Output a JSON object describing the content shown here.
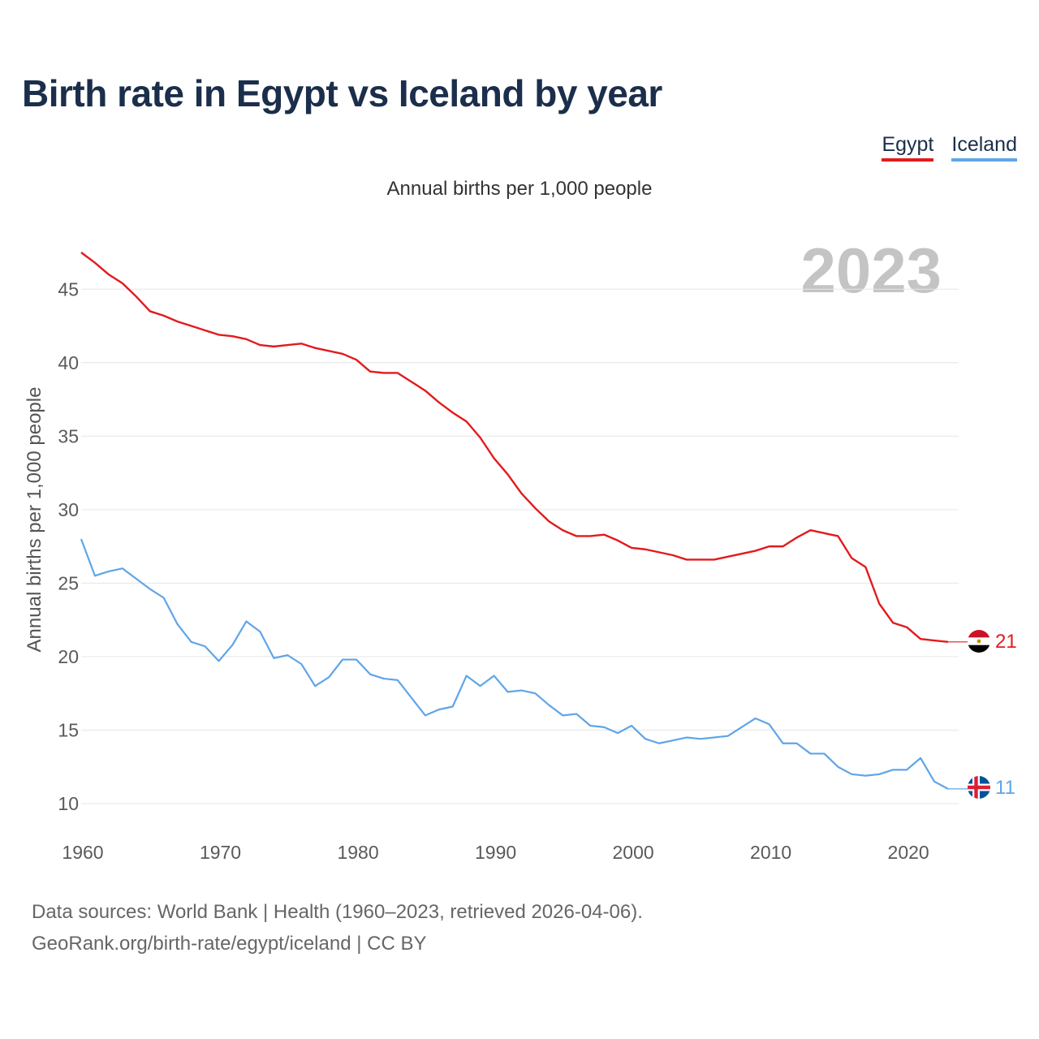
{
  "header": {
    "title": "Birth rate in Egypt vs Iceland by year"
  },
  "legend": {
    "items": [
      {
        "name": "Egypt",
        "color": "#e31a1c"
      },
      {
        "name": "Iceland",
        "color": "#5fa5e8"
      }
    ]
  },
  "chart_data": {
    "type": "line",
    "title": "Birth rate in Egypt vs Iceland by year",
    "subtitle": "Annual births per 1,000 people",
    "ylabel": "Annual births per 1,000 people",
    "xlabel": "",
    "year_label": "2023",
    "xlim": [
      1960,
      2023
    ],
    "ylim": [
      10,
      47.5
    ],
    "y_ticks": [
      10,
      15,
      20,
      25,
      30,
      35,
      40,
      45
    ],
    "x_ticks": [
      1960,
      1970,
      1980,
      1990,
      2000,
      2010,
      2020
    ],
    "x": [
      1960,
      1961,
      1962,
      1963,
      1964,
      1965,
      1966,
      1967,
      1968,
      1969,
      1970,
      1971,
      1972,
      1973,
      1974,
      1975,
      1976,
      1977,
      1978,
      1979,
      1980,
      1981,
      1982,
      1983,
      1984,
      1985,
      1986,
      1987,
      1988,
      1989,
      1990,
      1991,
      1992,
      1993,
      1994,
      1995,
      1996,
      1997,
      1998,
      1999,
      2000,
      2001,
      2002,
      2003,
      2004,
      2005,
      2006,
      2007,
      2008,
      2009,
      2010,
      2011,
      2012,
      2013,
      2014,
      2015,
      2016,
      2017,
      2018,
      2019,
      2020,
      2021,
      2022,
      2023
    ],
    "series": [
      {
        "name": "Egypt",
        "color": "#e31a1c",
        "end_label": "21",
        "values": [
          47.5,
          46.8,
          46.0,
          45.4,
          44.5,
          43.5,
          43.2,
          42.8,
          42.5,
          42.2,
          41.9,
          41.8,
          41.6,
          41.2,
          41.1,
          41.2,
          41.3,
          41.0,
          40.8,
          40.6,
          40.2,
          39.4,
          39.3,
          39.3,
          38.7,
          38.1,
          37.3,
          36.6,
          36.0,
          34.9,
          33.5,
          32.4,
          31.1,
          30.1,
          29.2,
          28.6,
          28.2,
          28.2,
          28.3,
          27.9,
          27.4,
          27.3,
          27.1,
          26.9,
          26.6,
          26.6,
          26.6,
          26.8,
          27.0,
          27.2,
          27.5,
          27.5,
          28.1,
          28.6,
          28.4,
          28.2,
          26.7,
          26.1,
          23.6,
          22.3,
          22.0,
          21.2,
          21.1,
          21.0
        ]
      },
      {
        "name": "Iceland",
        "color": "#5fa5e8",
        "end_label": "11",
        "values": [
          28.0,
          25.5,
          25.8,
          26.0,
          25.3,
          24.6,
          24.0,
          22.2,
          21.0,
          20.7,
          19.7,
          20.8,
          22.4,
          21.7,
          19.9,
          20.1,
          19.5,
          18.0,
          18.6,
          19.8,
          19.8,
          18.8,
          18.5,
          18.4,
          17.2,
          16.0,
          16.4,
          16.6,
          18.7,
          18.0,
          18.7,
          17.6,
          17.7,
          17.5,
          16.7,
          16.0,
          16.1,
          15.3,
          15.2,
          14.8,
          15.3,
          14.4,
          14.1,
          14.3,
          14.5,
          14.4,
          14.5,
          14.6,
          15.2,
          15.8,
          15.4,
          14.1,
          14.1,
          13.4,
          13.4,
          12.5,
          12.0,
          11.9,
          12.0,
          12.3,
          12.3,
          13.1,
          11.5,
          11.0
        ]
      }
    ]
  },
  "footer": {
    "line1": "Data sources: World Bank | Health (1960–2023, retrieved 2026-04-06).",
    "line2": "GeoRank.org/birth-rate/egypt/iceland | CC BY"
  }
}
